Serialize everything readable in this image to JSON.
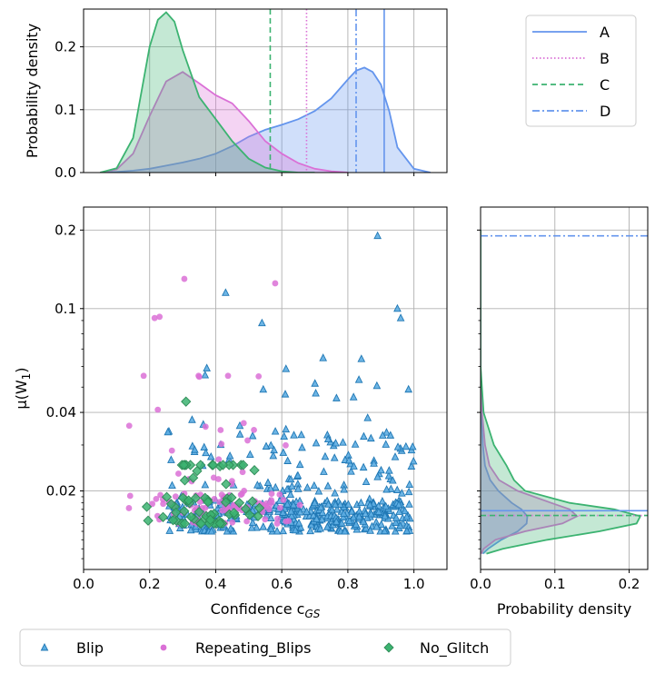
{
  "chart_data": [
    {
      "type": "area",
      "panel": "top-marginal",
      "ylabel": "Probability density",
      "xlim": [
        0.0,
        1.1
      ],
      "ylim": [
        0.0,
        0.26
      ],
      "yticks": [
        0.0,
        0.1,
        0.2
      ],
      "ytick_labels": [
        "0.0",
        "0.1",
        "0.2"
      ],
      "grid": true,
      "series": [
        {
          "name": "Blip",
          "color": "#6495ed",
          "x": [
            0.05,
            0.1,
            0.15,
            0.2,
            0.25,
            0.3,
            0.35,
            0.4,
            0.45,
            0.5,
            0.55,
            0.6,
            0.65,
            0.7,
            0.75,
            0.8,
            0.825,
            0.85,
            0.875,
            0.9,
            0.925,
            0.95,
            1.0,
            1.05
          ],
          "y": [
            0.0,
            0.001,
            0.003,
            0.006,
            0.011,
            0.016,
            0.022,
            0.03,
            0.042,
            0.057,
            0.068,
            0.076,
            0.085,
            0.098,
            0.118,
            0.148,
            0.162,
            0.167,
            0.16,
            0.14,
            0.098,
            0.04,
            0.006,
            0.0
          ]
        },
        {
          "name": "Repeating_Blips",
          "color": "#da70d6",
          "x": [
            0.05,
            0.1,
            0.15,
            0.2,
            0.25,
            0.3,
            0.35,
            0.4,
            0.45,
            0.5,
            0.55,
            0.6,
            0.65,
            0.7,
            0.75,
            0.8
          ],
          "y": [
            0.0,
            0.005,
            0.03,
            0.09,
            0.145,
            0.16,
            0.142,
            0.123,
            0.11,
            0.082,
            0.05,
            0.03,
            0.015,
            0.006,
            0.002,
            0.0
          ]
        },
        {
          "name": "No_Glitch",
          "color": "#3cb371",
          "x": [
            0.05,
            0.1,
            0.15,
            0.2,
            0.225,
            0.25,
            0.275,
            0.3,
            0.35,
            0.4,
            0.45,
            0.5,
            0.55,
            0.6,
            0.65,
            0.7
          ],
          "y": [
            0.0,
            0.007,
            0.055,
            0.2,
            0.243,
            0.255,
            0.24,
            0.195,
            0.12,
            0.085,
            0.05,
            0.022,
            0.008,
            0.002,
            0.0,
            0.0
          ]
        }
      ],
      "vlines": [
        {
          "label": "A",
          "x": 0.91,
          "color": "#6495ed",
          "style": "solid"
        },
        {
          "label": "B",
          "x": 0.675,
          "color": "#da70d6",
          "style": "dotted"
        },
        {
          "label": "C",
          "x": 0.565,
          "color": "#3cb371",
          "style": "dashed"
        },
        {
          "label": "D",
          "x": 0.825,
          "color": "#6495ed",
          "style": "dashdot"
        }
      ]
    },
    {
      "type": "scatter",
      "panel": "main",
      "xlabel": "Confidence c",
      "xlabel_subscript": "GS",
      "ylabel": "μ(W",
      "ylabel_subscript": "1",
      "ylabel_suffix": ")",
      "xlim": [
        0.0,
        1.1
      ],
      "xticks": [
        0.0,
        0.2,
        0.4,
        0.6,
        0.8,
        1.0
      ],
      "xtick_labels": [
        "0.0",
        "0.2",
        "0.4",
        "0.6",
        "0.8",
        "1.0"
      ],
      "ylim": [
        0.01,
        0.245
      ],
      "yscale": "log",
      "yticks": [
        0.02,
        0.04,
        0.1,
        0.2
      ],
      "ytick_labels": [
        "0.02",
        "0.04",
        "0.1",
        "0.2"
      ],
      "grid": true,
      "legend_position": "bottom",
      "series": [
        {
          "name": "Blip",
          "marker": "triangle",
          "color": "#1f77b4",
          "fill": "#5dade2",
          "count": 480,
          "x_range": [
            0.25,
            1.0
          ],
          "y_range": [
            0.014,
            0.19
          ],
          "y_typical": 0.016
        },
        {
          "name": "Repeating_Blips",
          "marker": "circle",
          "color": "#da70d6",
          "count": 110,
          "x_range": [
            0.12,
            0.68
          ],
          "y_range": [
            0.015,
            0.13
          ],
          "y_typical": 0.017
        },
        {
          "name": "No_Glitch",
          "marker": "diamond",
          "color": "#3cb371",
          "count": 70,
          "x_range": [
            0.15,
            0.56
          ],
          "y_range": [
            0.015,
            0.044
          ],
          "y_typical": 0.0165
        }
      ],
      "outliers": [
        {
          "series": "Blip",
          "x": 0.89,
          "y": 0.19
        },
        {
          "series": "Blip",
          "x": 0.95,
          "y": 0.1
        },
        {
          "series": "Blip",
          "x": 0.96,
          "y": 0.092
        },
        {
          "series": "Blip",
          "x": 0.43,
          "y": 0.115
        },
        {
          "series": "Blip",
          "x": 0.54,
          "y": 0.088
        },
        {
          "series": "Repeating_Blips",
          "x": 0.305,
          "y": 0.13
        },
        {
          "series": "Repeating_Blips",
          "x": 0.58,
          "y": 0.125
        },
        {
          "series": "Repeating_Blips",
          "x": 0.215,
          "y": 0.092
        },
        {
          "series": "Repeating_Blips",
          "x": 0.23,
          "y": 0.093
        },
        {
          "series": "No_Glitch",
          "x": 0.31,
          "y": 0.044
        }
      ]
    },
    {
      "type": "area",
      "panel": "right-marginal",
      "xlabel": "Probability density",
      "xlim": [
        0.0,
        0.225
      ],
      "xticks": [
        0.0,
        0.1,
        0.2
      ],
      "xtick_labels": [
        "0.0",
        "0.1",
        "0.2"
      ],
      "yscale": "log",
      "grid": true,
      "series": [
        {
          "name": "Blip",
          "color": "#6495ed",
          "y": [
            0.0115,
            0.012,
            0.013,
            0.014,
            0.015,
            0.016,
            0.017,
            0.018,
            0.02,
            0.022,
            0.025,
            0.03,
            0.04,
            0.06,
            0.1,
            0.2
          ],
          "x": [
            0.003,
            0.01,
            0.028,
            0.05,
            0.062,
            0.063,
            0.055,
            0.042,
            0.024,
            0.013,
            0.006,
            0.003,
            0.001,
            0.0,
            0.0,
            0.0
          ]
        },
        {
          "name": "Repeating_Blips",
          "color": "#da70d6",
          "y": [
            0.0115,
            0.012,
            0.013,
            0.014,
            0.015,
            0.016,
            0.017,
            0.018,
            0.02,
            0.022,
            0.025,
            0.03,
            0.04,
            0.06,
            0.1,
            0.2
          ],
          "x": [
            0.001,
            0.004,
            0.02,
            0.06,
            0.11,
            0.13,
            0.12,
            0.095,
            0.05,
            0.025,
            0.012,
            0.006,
            0.002,
            0.0,
            0.0,
            0.0
          ]
        },
        {
          "name": "No_Glitch",
          "color": "#3cb371",
          "y": [
            0.0115,
            0.012,
            0.013,
            0.014,
            0.015,
            0.016,
            0.017,
            0.018,
            0.02,
            0.022,
            0.025,
            0.03,
            0.04,
            0.06,
            0.1,
            0.2
          ],
          "x": [
            0.008,
            0.03,
            0.09,
            0.16,
            0.21,
            0.215,
            0.18,
            0.12,
            0.06,
            0.045,
            0.035,
            0.018,
            0.004,
            0.0,
            0.0,
            0.0
          ]
        }
      ],
      "hlines": [
        {
          "label": "A",
          "y": 0.0168,
          "color": "#6495ed",
          "style": "solid"
        },
        {
          "label": "B",
          "y": 0.0161,
          "color": "#da70d6",
          "style": "dotted"
        },
        {
          "label": "C",
          "y": 0.0161,
          "color": "#3cb371",
          "style": "dashed"
        },
        {
          "label": "D",
          "y": 0.19,
          "color": "#6495ed",
          "style": "dashdot"
        }
      ]
    }
  ],
  "legends": {
    "lines": [
      {
        "label": "A",
        "color": "#6495ed",
        "style": "solid"
      },
      {
        "label": "B",
        "color": "#da70d6",
        "style": "dotted"
      },
      {
        "label": "C",
        "color": "#3cb371",
        "style": "dashed"
      },
      {
        "label": "D",
        "color": "#6495ed",
        "style": "dashdot"
      }
    ],
    "markers": [
      {
        "label": "Blip",
        "marker": "triangle",
        "color": "#1f77b4"
      },
      {
        "label": "Repeating_Blips",
        "marker": "circle",
        "color": "#da70d6"
      },
      {
        "label": "No_Glitch",
        "marker": "diamond",
        "color": "#3cb371"
      }
    ]
  }
}
